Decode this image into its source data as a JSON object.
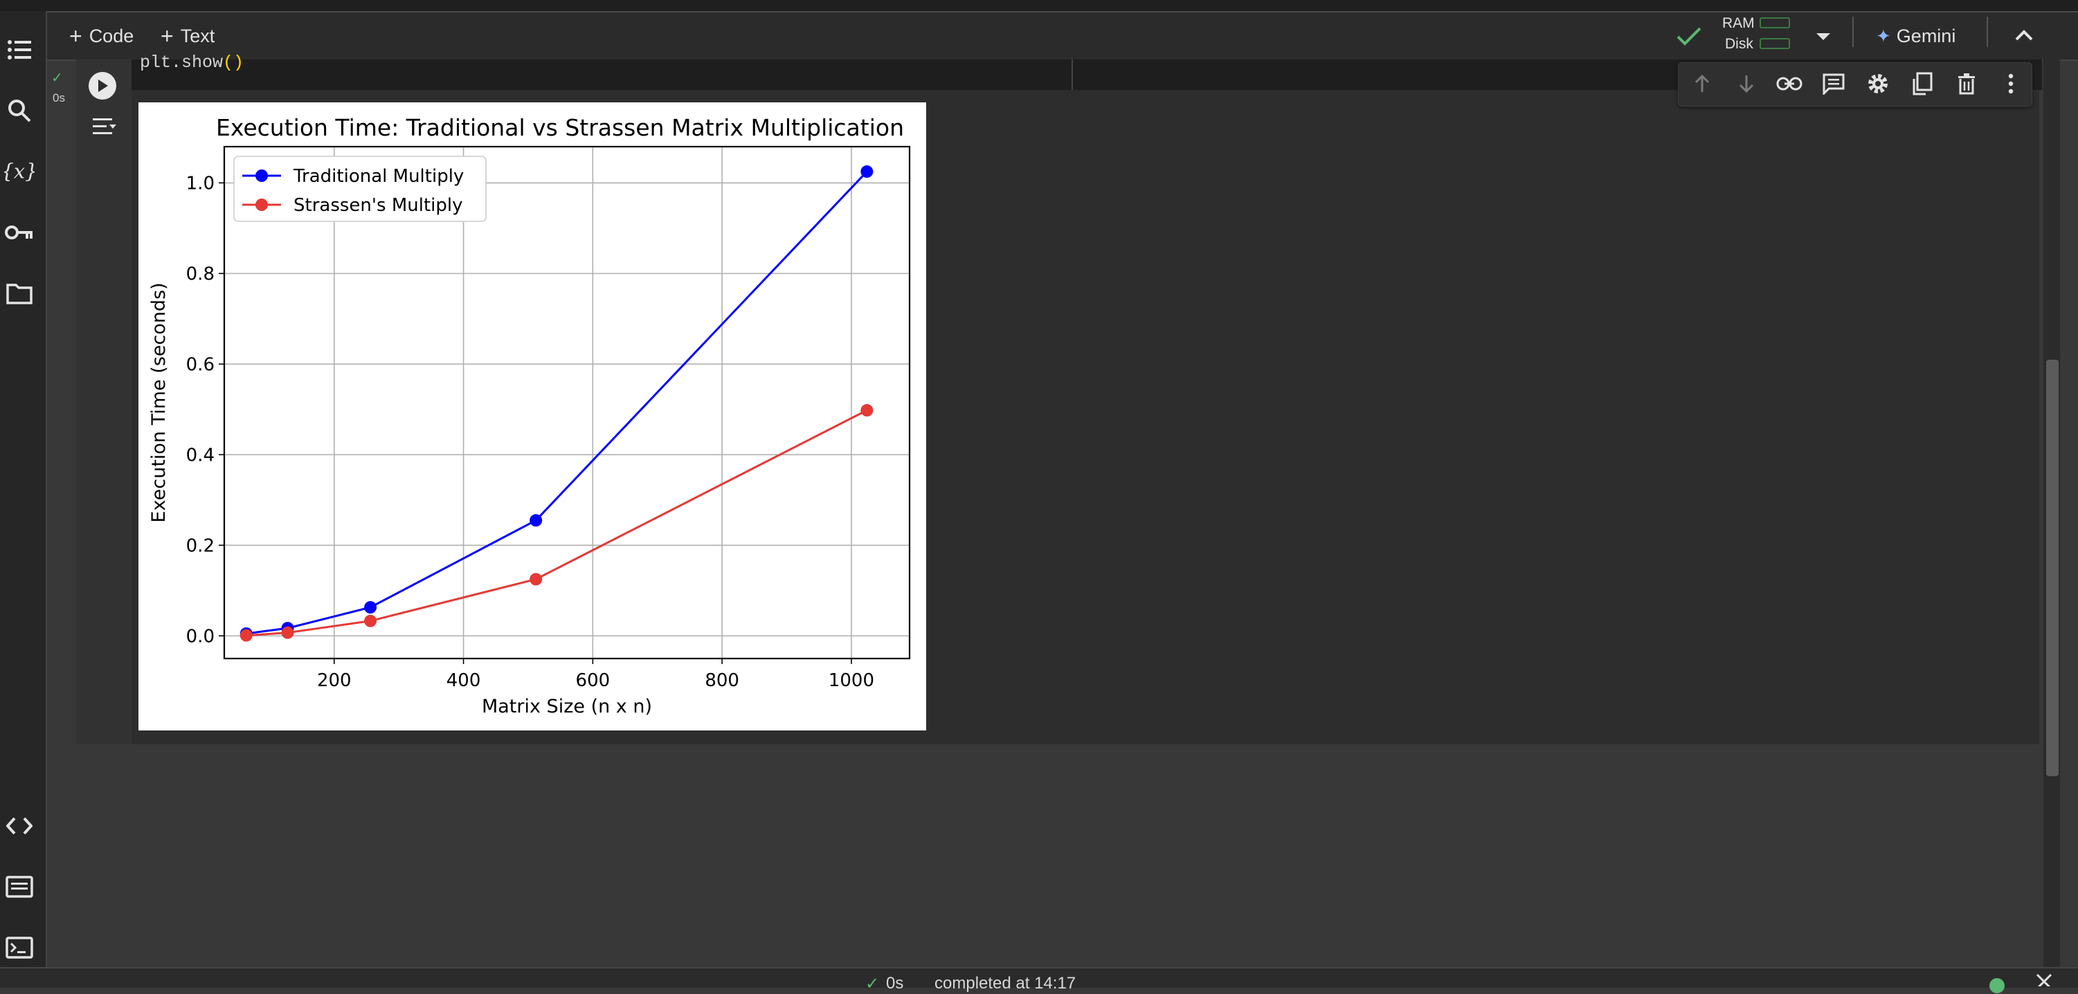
{
  "toolbar": {
    "add_code_label": "Code",
    "add_text_label": "Text",
    "ram_label": "RAM",
    "disk_label": "Disk",
    "gemini_label": "Gemini"
  },
  "cell": {
    "code_line_before": "plt.show",
    "code_line_parens": "()",
    "exec_time": "0s"
  },
  "status_bar": {
    "elapsed": "0s",
    "completed": "completed at 14:17"
  },
  "icons": {
    "sidebar": [
      "table-of-contents-icon",
      "search-icon",
      "variables-icon",
      "secrets-key-icon",
      "files-folder-icon",
      "code-snippets-icon",
      "command-palette-icon",
      "terminal-icon"
    ],
    "cell_toolbar": [
      "move-up-icon",
      "move-down-icon",
      "link-icon",
      "comment-icon",
      "settings-icon",
      "mirror-cell-icon",
      "delete-icon",
      "more-vert-icon"
    ]
  },
  "colors": {
    "traditional": "#0000ff",
    "strassen": "#e53935",
    "connected": "#5bb974"
  },
  "chart_data": {
    "type": "line",
    "title": "Execution Time: Traditional vs Strassen Matrix Multiplication",
    "xlabel": "Matrix Size (n x n)",
    "ylabel": "Execution Time (seconds)",
    "xlim": [
      30,
      1090
    ],
    "ylim": [
      -0.05,
      1.08
    ],
    "xticks": [
      200,
      400,
      600,
      800,
      1000
    ],
    "yticks": [
      0.0,
      0.2,
      0.4,
      0.6,
      0.8,
      1.0
    ],
    "xtick_labels": [
      "200",
      "400",
      "600",
      "800",
      "1000"
    ],
    "ytick_labels": [
      "0.0",
      "0.2",
      "0.4",
      "0.6",
      "0.8",
      "1.0"
    ],
    "grid": true,
    "legend": "top-left",
    "x": [
      64,
      128,
      256,
      512,
      1024
    ],
    "series": [
      {
        "name": "Traditional Multiply",
        "color": "#0000ff",
        "values": [
          0.005,
          0.017,
          0.063,
          0.255,
          1.025
        ]
      },
      {
        "name": "Strassen's Multiply",
        "color": "#e53935",
        "values": [
          0.001,
          0.007,
          0.033,
          0.125,
          0.498
        ]
      }
    ]
  }
}
